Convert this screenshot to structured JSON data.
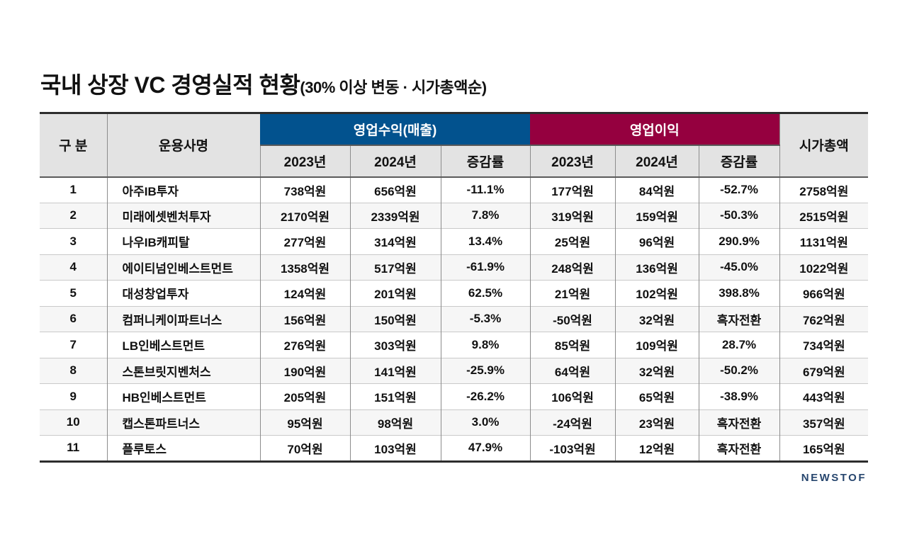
{
  "title": {
    "main": "국내 상장 VC 경영실적 현황",
    "sub": "(30% 이상 변동 · 시가총액순)"
  },
  "table": {
    "headers": {
      "category": "구 분",
      "company": "운용사명",
      "revenue_group": "영업수익(매출)",
      "profit_group": "영업이익",
      "market_cap": "시가총액"
    },
    "sub_headers": [
      "2023년",
      "2024년",
      "증감률",
      "2023년",
      "2024년",
      "증감률"
    ],
    "colors": {
      "revenue_header_bg": "#02528e",
      "profit_header_bg": "#95003f",
      "header_gray_bg": "#e3e3e3",
      "alt_row_bg": "#f6f6f6",
      "outer_border": "#2d2d2d",
      "logo_color": "#27466e"
    }
  },
  "chart_data": {
    "type": "table",
    "title": "국내 상장 VC 경영실적 현황(30% 이상 변동 · 시가총액순)",
    "columns": [
      "구 분",
      "운용사명",
      "영업수익(매출) 2023년",
      "영업수익(매출) 2024년",
      "영업수익(매출) 증감률",
      "영업이익 2023년",
      "영업이익 2024년",
      "영업이익 증감률",
      "시가총액"
    ],
    "rows": [
      [
        "1",
        "아주IB투자",
        "738억원",
        "656억원",
        "-11.1%",
        "177억원",
        "84억원",
        "-52.7%",
        "2758억원"
      ],
      [
        "2",
        "미래에셋벤처투자",
        "2170억원",
        "2339억원",
        "7.8%",
        "319억원",
        "159억원",
        "-50.3%",
        "2515억원"
      ],
      [
        "3",
        "나우IB캐피탈",
        "277억원",
        "314억원",
        "13.4%",
        "25억원",
        "96억원",
        "290.9%",
        "1131억원"
      ],
      [
        "4",
        "에이티넘인베스트먼트",
        "1358억원",
        "517억원",
        "-61.9%",
        "248억원",
        "136억원",
        "-45.0%",
        "1022억원"
      ],
      [
        "5",
        "대성창업투자",
        "124억원",
        "201억원",
        "62.5%",
        "21억원",
        "102억원",
        "398.8%",
        "966억원"
      ],
      [
        "6",
        "컴퍼니케이파트너스",
        "156억원",
        "150억원",
        "-5.3%",
        "-50억원",
        "32억원",
        "흑자전환",
        "762억원"
      ],
      [
        "7",
        "LB인베스트먼트",
        "276억원",
        "303억원",
        "9.8%",
        "85억원",
        "109억원",
        "28.7%",
        "734억원"
      ],
      [
        "8",
        "스톤브릿지벤처스",
        "190억원",
        "141억원",
        "-25.9%",
        "64억원",
        "32억원",
        "-50.2%",
        "679억원"
      ],
      [
        "9",
        "HB인베스트먼트",
        "205억원",
        "151억원",
        "-26.2%",
        "106억원",
        "65억원",
        "-38.9%",
        "443억원"
      ],
      [
        "10",
        "캡스톤파트너스",
        "95억원",
        "98억원",
        "3.0%",
        "-24억원",
        "23억원",
        "흑자전환",
        "357억원"
      ],
      [
        "11",
        "플루토스",
        "70억원",
        "103억원",
        "47.9%",
        "-103억원",
        "12억원",
        "흑자전환",
        "165억원"
      ]
    ]
  },
  "footer": {
    "logo": "NEWSTOF"
  }
}
